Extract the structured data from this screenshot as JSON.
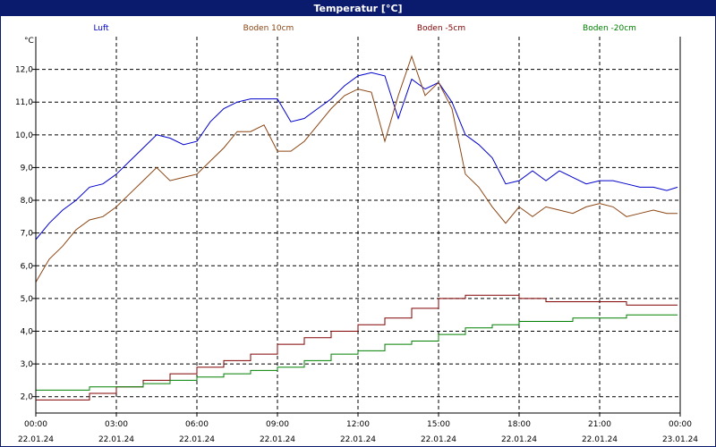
{
  "window": {
    "title": "Temperatur [°C]"
  },
  "chart_data": {
    "type": "line",
    "title": "Temperatur [°C]",
    "ylabel": "°C",
    "ylim": [
      1.5,
      13.0
    ],
    "y_ticks": [
      "2,0",
      "3,0",
      "4,0",
      "5,0",
      "6,0",
      "7,0",
      "8,0",
      "9,0",
      "10,0",
      "11,0",
      "12,0"
    ],
    "y_tick_values": [
      2,
      3,
      4,
      5,
      6,
      7,
      8,
      9,
      10,
      11,
      12
    ],
    "xlim": [
      0,
      24
    ],
    "x_ticks": [
      {
        "time": "00:00",
        "date": "22.01.24"
      },
      {
        "time": "03:00",
        "date": "22.01.24"
      },
      {
        "time": "06:00",
        "date": "22.01.24"
      },
      {
        "time": "09:00",
        "date": "22.01.24"
      },
      {
        "time": "12:00",
        "date": "22.01.24"
      },
      {
        "time": "15:00",
        "date": "22.01.24"
      },
      {
        "time": "18:00",
        "date": "22.01.24"
      },
      {
        "time": "21:00",
        "date": "22.01.24"
      },
      {
        "time": "00:00",
        "date": "23.01.24"
      }
    ],
    "x_tick_values": [
      0,
      3,
      6,
      9,
      12,
      15,
      18,
      21,
      24
    ],
    "grid": true,
    "legend": "top",
    "series": [
      {
        "name": "Luft",
        "color": "#0000cc",
        "x": [
          0,
          0.5,
          1,
          1.5,
          2,
          2.5,
          3,
          3.5,
          4,
          4.5,
          5,
          5.5,
          6,
          6.5,
          7,
          7.5,
          8,
          8.5,
          9,
          9.5,
          10,
          10.5,
          11,
          11.5,
          12,
          12.5,
          13,
          13.5,
          14,
          14.5,
          15,
          15.5,
          16,
          16.5,
          17,
          17.5,
          18,
          18.5,
          19,
          19.5,
          20,
          20.5,
          21,
          21.5,
          22,
          22.5,
          23,
          23.5,
          23.9
        ],
        "y": [
          6.8,
          7.3,
          7.7,
          8.0,
          8.4,
          8.5,
          8.8,
          9.2,
          9.6,
          10.0,
          9.9,
          9.7,
          9.8,
          10.4,
          10.8,
          11.0,
          11.1,
          11.1,
          11.1,
          10.4,
          10.5,
          10.8,
          11.1,
          11.5,
          11.8,
          11.9,
          11.8,
          10.5,
          11.7,
          11.4,
          11.6,
          11.0,
          10.0,
          9.7,
          9.3,
          8.5,
          8.6,
          8.9,
          8.6,
          8.9,
          8.7,
          8.5,
          8.6,
          8.6,
          8.5,
          8.4,
          8.4,
          8.3,
          8.4
        ]
      },
      {
        "name": "Boden 10cm",
        "color": "#8b4513",
        "x": [
          0,
          0.5,
          1,
          1.5,
          2,
          2.5,
          3,
          3.5,
          4,
          4.5,
          5,
          5.5,
          6,
          6.5,
          7,
          7.5,
          8,
          8.5,
          9,
          9.5,
          10,
          10.5,
          11,
          11.5,
          12,
          12.5,
          13,
          13.5,
          14,
          14.5,
          15,
          15.5,
          16,
          16.5,
          17,
          17.5,
          18,
          18.5,
          19,
          19.5,
          20,
          20.5,
          21,
          21.5,
          22,
          22.5,
          23,
          23.5,
          23.9
        ],
        "y": [
          5.5,
          6.2,
          6.6,
          7.1,
          7.4,
          7.5,
          7.8,
          8.2,
          8.6,
          9.0,
          8.6,
          8.7,
          8.8,
          9.2,
          9.6,
          10.1,
          10.1,
          10.3,
          9.5,
          9.5,
          9.8,
          10.3,
          10.8,
          11.2,
          11.4,
          11.3,
          9.8,
          11.2,
          12.4,
          11.2,
          11.6,
          10.8,
          8.8,
          8.4,
          7.8,
          7.3,
          7.8,
          7.5,
          7.8,
          7.7,
          7.6,
          7.8,
          7.9,
          7.8,
          7.5,
          7.6,
          7.7,
          7.6,
          7.6
        ]
      },
      {
        "name": "Boden -5cm",
        "color": "#800000",
        "x": [
          0,
          1,
          2,
          3,
          4,
          5,
          6,
          7,
          8,
          9,
          10,
          11,
          12,
          13,
          14,
          15,
          16,
          17,
          18,
          19,
          20,
          21,
          22,
          23,
          23.9
        ],
        "y": [
          1.9,
          1.9,
          2.1,
          2.3,
          2.5,
          2.7,
          2.9,
          3.1,
          3.3,
          3.6,
          3.8,
          4.0,
          4.2,
          4.4,
          4.7,
          5.0,
          5.1,
          5.1,
          5.0,
          4.9,
          4.9,
          4.9,
          4.8,
          4.8,
          4.8
        ]
      },
      {
        "name": "Boden -20cm",
        "color": "#008000",
        "x": [
          0,
          1,
          2,
          3,
          4,
          5,
          6,
          7,
          8,
          9,
          10,
          11,
          12,
          13,
          14,
          15,
          16,
          17,
          18,
          19,
          20,
          21,
          22,
          23,
          23.9
        ],
        "y": [
          2.2,
          2.2,
          2.3,
          2.3,
          2.4,
          2.5,
          2.6,
          2.7,
          2.8,
          2.9,
          3.1,
          3.3,
          3.4,
          3.6,
          3.7,
          3.9,
          4.1,
          4.2,
          4.3,
          4.3,
          4.4,
          4.4,
          4.5,
          4.5,
          4.5
        ]
      }
    ]
  }
}
